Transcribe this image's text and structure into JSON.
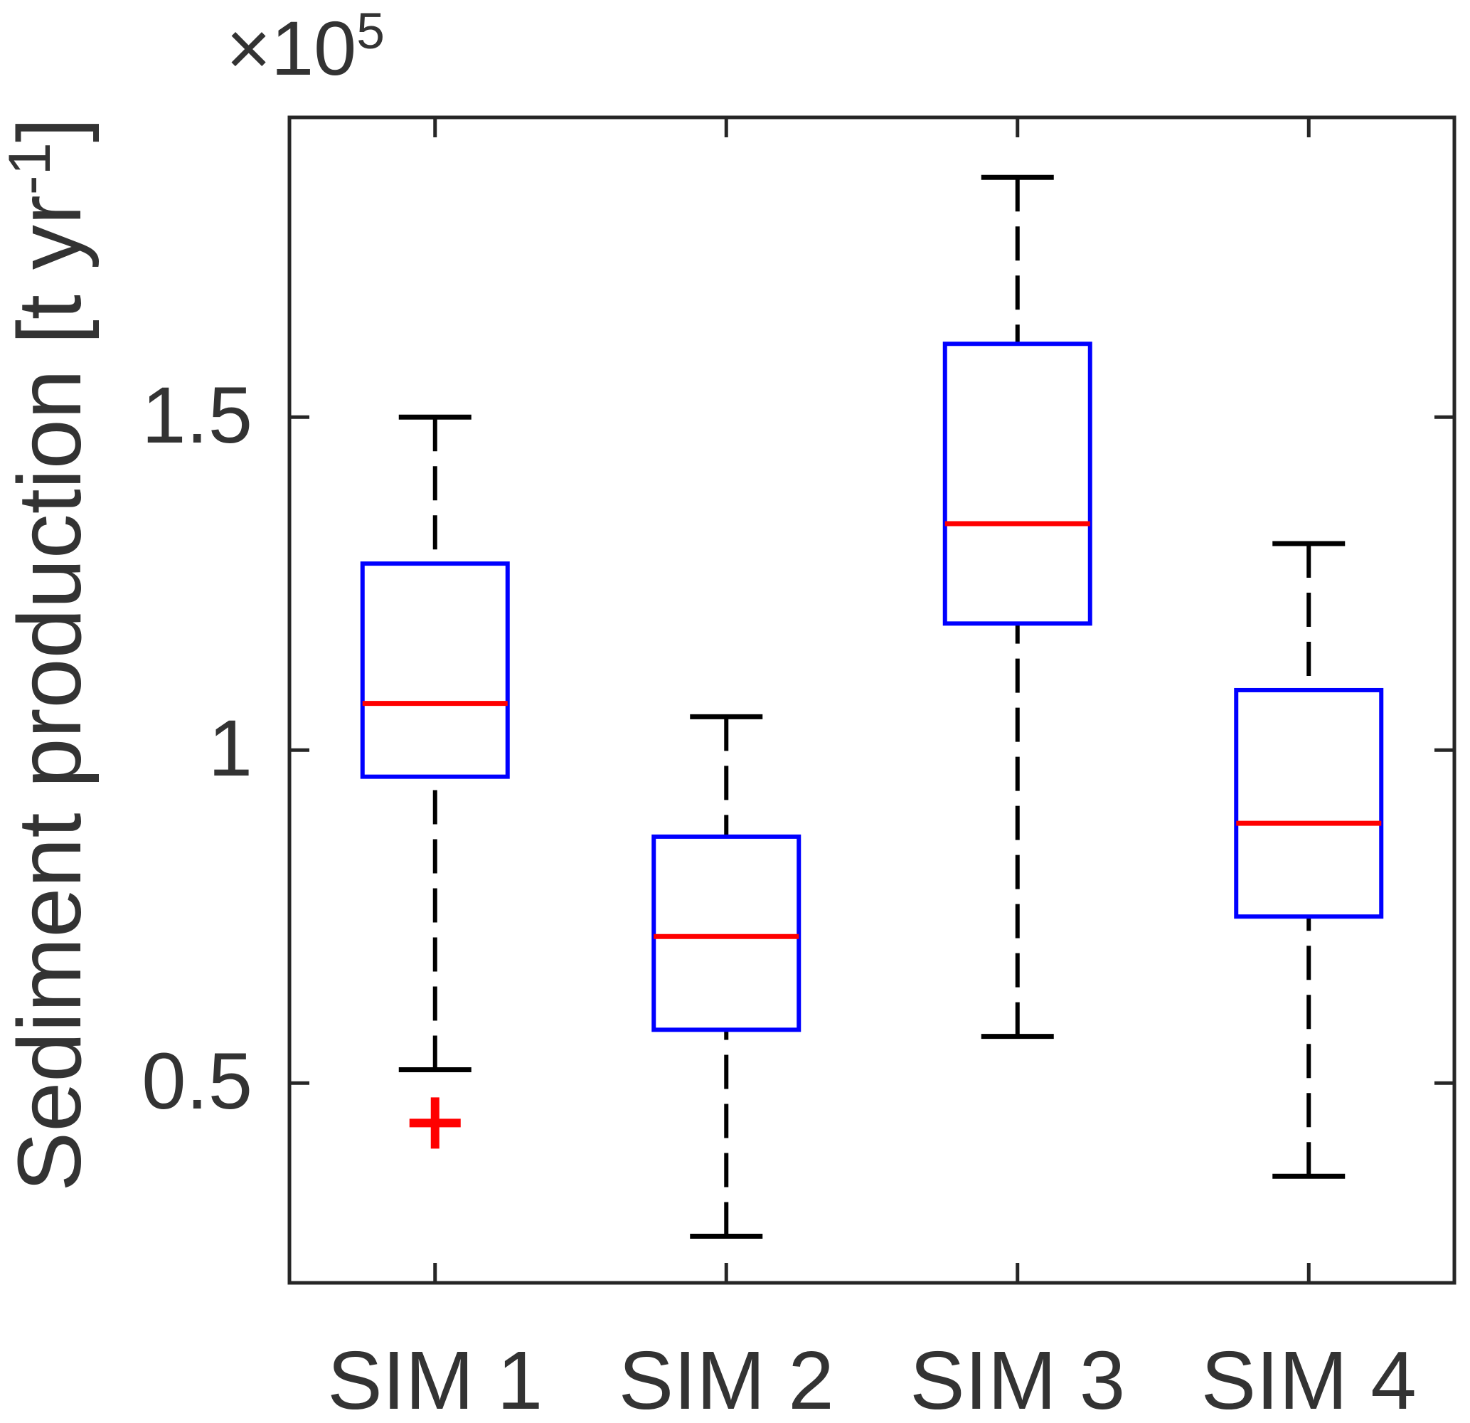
{
  "figure": {
    "background": "#ffffff",
    "ylabel": {
      "prefix": "Sediment production [t yr",
      "sup": "-1",
      "suffix": "]"
    },
    "offset_label": {
      "times": "×",
      "base": "10",
      "exp": "5"
    }
  },
  "chart_data": {
    "type": "box",
    "title": "",
    "xlabel": "",
    "ylabel": "Sediment production [t yr^-1]",
    "y_unit_multiplier": "1e5",
    "categories": [
      "SIM 1",
      "SIM 2",
      "SIM 3",
      "SIM 4"
    ],
    "ytick_values": [
      0.5,
      1,
      1.5
    ],
    "ytick_labels": [
      "0.5",
      "1",
      "1.5"
    ],
    "ylim": [
      0.2,
      1.95
    ],
    "grid": false,
    "legend": "none",
    "whisker_linestyle": "dashed",
    "series": [
      {
        "name": "SIM 1",
        "whislo": 0.52,
        "q1": 0.96,
        "med": 1.07,
        "q3": 1.28,
        "whishi": 1.5,
        "outliers": [
          0.44
        ]
      },
      {
        "name": "SIM 2",
        "whislo": 0.27,
        "q1": 0.58,
        "med": 0.72,
        "q3": 0.87,
        "whishi": 1.05,
        "outliers": []
      },
      {
        "name": "SIM 3",
        "whislo": 0.57,
        "q1": 1.19,
        "med": 1.34,
        "q3": 1.61,
        "whishi": 1.86,
        "outliers": []
      },
      {
        "name": "SIM 4",
        "whislo": 0.36,
        "q1": 0.75,
        "med": 0.89,
        "q3": 1.09,
        "whishi": 1.31,
        "outliers": []
      }
    ],
    "colors": {
      "box": "#0000ff",
      "median": "#ff0000",
      "whisker": "#000000",
      "outlier": "#ff0000",
      "axis": "#262626",
      "text": "#333333"
    }
  }
}
